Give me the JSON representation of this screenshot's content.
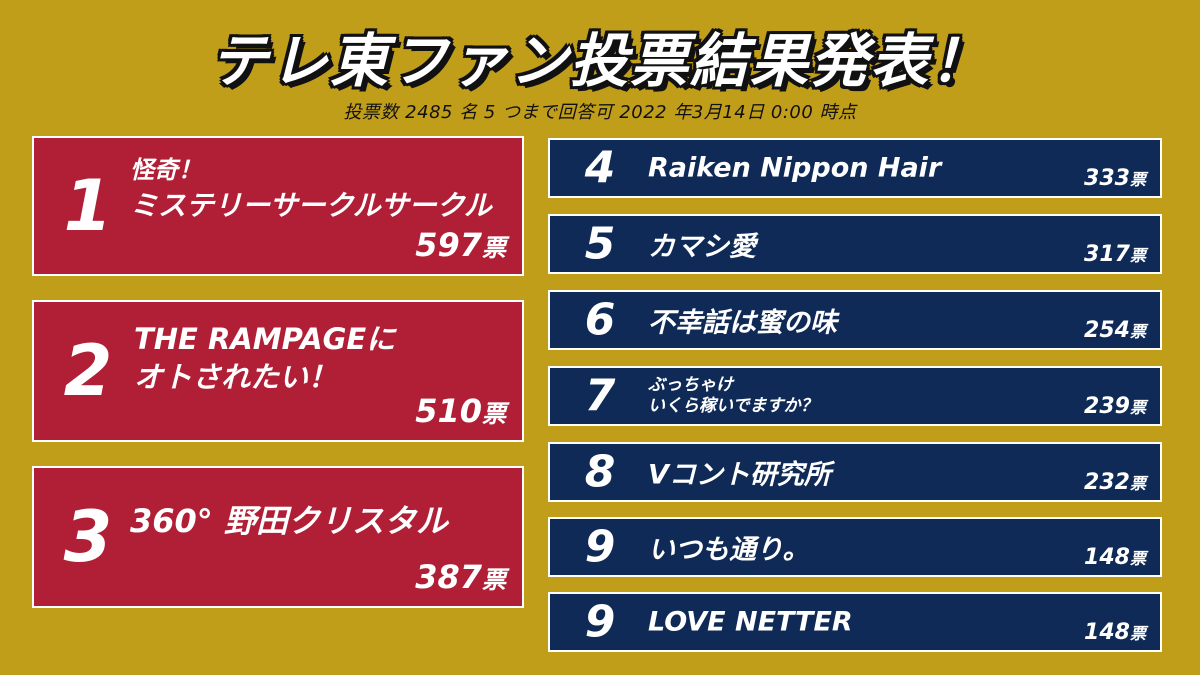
{
  "header": {
    "title": "テレ東ファン投票結果発表！",
    "subtitle": "投票数 2485 名 5 つまで回答可 2022 年3月14日 0:00 時点"
  },
  "vote_unit": "票",
  "top_ranks": [
    {
      "rank": "1",
      "name_line1": "怪奇！",
      "name_line2": "ミステリーサークルサークル",
      "votes": "597"
    },
    {
      "rank": "2",
      "name_line1": "THE RAMPAGEに",
      "name_line2": "オトされたい！",
      "votes": "510"
    },
    {
      "rank": "3",
      "name_line1": "360° 野田クリスタル",
      "name_line2": "",
      "votes": "387"
    }
  ],
  "other_ranks": [
    {
      "rank": "4",
      "name_line1": "Raiken Nippon Hair",
      "name_line2": "",
      "votes": "333"
    },
    {
      "rank": "5",
      "name_line1": "カマシ愛",
      "name_line2": "",
      "votes": "317"
    },
    {
      "rank": "6",
      "name_line1": "不幸話は蜜の味",
      "name_line2": "",
      "votes": "254"
    },
    {
      "rank": "7",
      "name_line1": "ぶっちゃけ",
      "name_line2": "いくら稼いでますか？",
      "votes": "239"
    },
    {
      "rank": "8",
      "name_line1": "Vコント研究所",
      "name_line2": "",
      "votes": "232"
    },
    {
      "rank": "9",
      "name_line1": "いつも通り。",
      "name_line2": "",
      "votes": "148"
    },
    {
      "rank": "9",
      "name_line1": "LOVE NETTER",
      "name_line2": "",
      "votes": "148"
    }
  ],
  "colors": {
    "background": "#c19e1a",
    "top_card": "#b01f36",
    "row_card": "#0f2a56",
    "text": "#ffffff"
  }
}
